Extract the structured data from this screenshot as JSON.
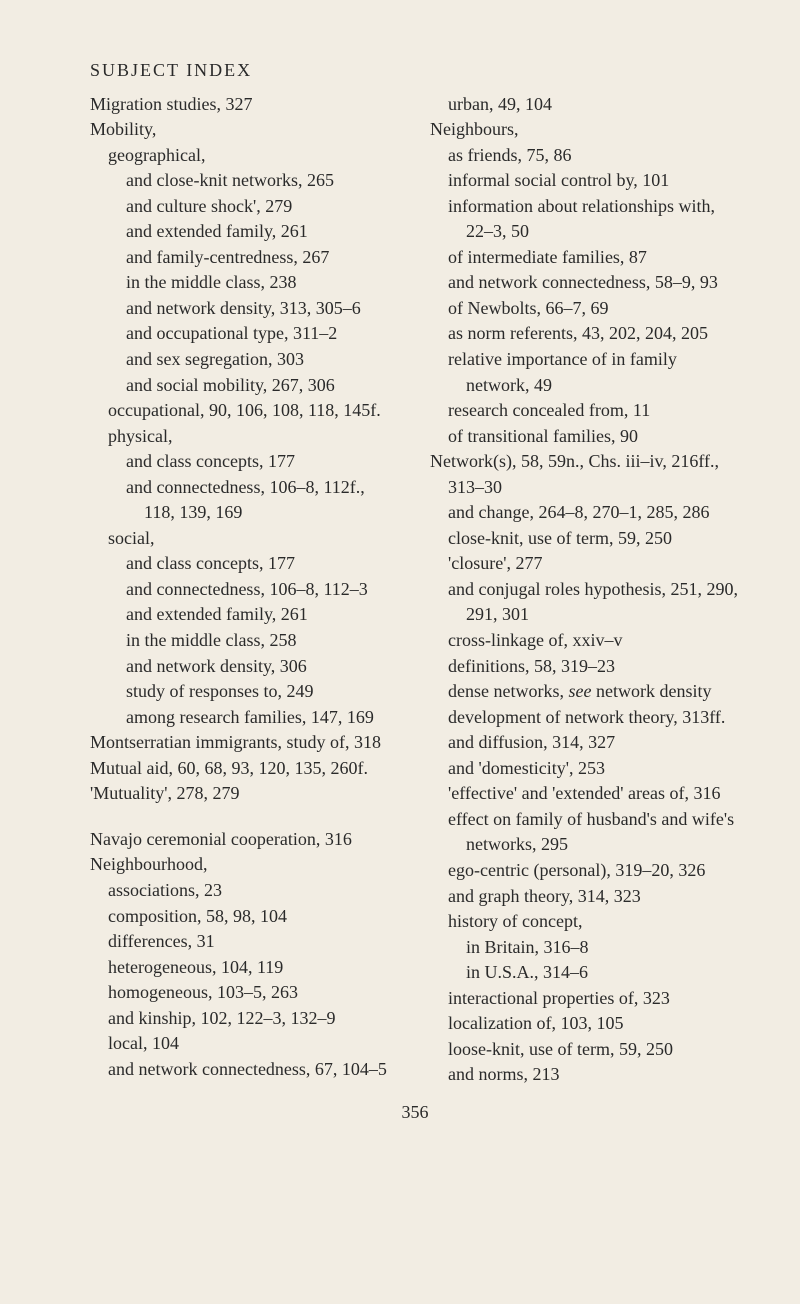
{
  "header": "SUBJECT INDEX",
  "pageNumber": "356",
  "leftColumn": [
    {
      "level": 0,
      "text": "Migration studies, 327"
    },
    {
      "level": 0,
      "text": "Mobility,"
    },
    {
      "level": 1,
      "text": "geographical,"
    },
    {
      "level": 2,
      "text": "and close-knit networks, 265"
    },
    {
      "level": 2,
      "text": "and culture shock', 279"
    },
    {
      "level": 2,
      "text": "and extended family, 261"
    },
    {
      "level": 2,
      "text": "and family-centredness, 267"
    },
    {
      "level": 2,
      "text": "in the middle class, 238"
    },
    {
      "level": 2,
      "text": "and network density, 313, 305–6"
    },
    {
      "level": 2,
      "text": "and occupational type, 311–2"
    },
    {
      "level": 2,
      "text": "and sex segregation, 303"
    },
    {
      "level": 2,
      "text": "and social mobility, 267, 306"
    },
    {
      "level": 1,
      "text": "occupational, 90, 106, 108, 118, 145f."
    },
    {
      "level": 1,
      "text": "physical,"
    },
    {
      "level": 2,
      "text": "and class concepts, 177"
    },
    {
      "level": 2,
      "text": "and connectedness, 106–8, 112f., 118, 139, 169"
    },
    {
      "level": 1,
      "text": "social,"
    },
    {
      "level": 2,
      "text": "and class concepts, 177"
    },
    {
      "level": 2,
      "text": "and connectedness, 106–8, 112–3"
    },
    {
      "level": 2,
      "text": "and extended family, 261"
    },
    {
      "level": 2,
      "text": "in the middle class, 258"
    },
    {
      "level": 2,
      "text": "and network density, 306"
    },
    {
      "level": 2,
      "text": "study of responses to, 249"
    },
    {
      "level": 2,
      "text": "among research families, 147, 169"
    },
    {
      "level": 0,
      "text": "Montserratian immigrants, study of, 318"
    },
    {
      "level": 0,
      "text": "Mutual aid, 60, 68, 93, 120, 135, 260f."
    },
    {
      "level": 0,
      "text": "'Mutuality', 278, 279"
    },
    {
      "level": -1,
      "text": ""
    },
    {
      "level": 0,
      "text": "Navajo ceremonial cooperation, 316"
    },
    {
      "level": 0,
      "text": "Neighbourhood,"
    },
    {
      "level": 1,
      "text": "associations, 23"
    },
    {
      "level": 1,
      "text": "composition, 58, 98, 104"
    },
    {
      "level": 1,
      "text": "differences, 31"
    },
    {
      "level": 1,
      "text": "heterogeneous, 104, 119"
    },
    {
      "level": 1,
      "text": "homogeneous, 103–5, 263"
    },
    {
      "level": 1,
      "text": "and kinship, 102, 122–3, 132–9"
    },
    {
      "level": 1,
      "text": "local, 104"
    },
    {
      "level": 1,
      "text": "and network connectedness, 67, 104–5"
    }
  ],
  "rightColumn": [
    {
      "level": 1,
      "text": "urban, 49, 104"
    },
    {
      "level": 0,
      "text": "Neighbours,"
    },
    {
      "level": 1,
      "text": "as friends, 75, 86"
    },
    {
      "level": 1,
      "text": "informal social control by, 101"
    },
    {
      "level": 1,
      "text": "information about relationships with, 22–3, 50"
    },
    {
      "level": 1,
      "text": "of intermediate families, 87"
    },
    {
      "level": 1,
      "text": "and network connectedness, 58–9, 93"
    },
    {
      "level": 1,
      "text": "of Newbolts, 66–7, 69"
    },
    {
      "level": 1,
      "text": "as norm referents, 43, 202, 204, 205"
    },
    {
      "level": 1,
      "text": "relative importance of in family network, 49"
    },
    {
      "level": 1,
      "text": "research concealed from, 11"
    },
    {
      "level": 1,
      "text": "of transitional families, 90"
    },
    {
      "level": 0,
      "text": "Network(s), 58, 59n., Chs. iii–iv, 216ff., 313–30"
    },
    {
      "level": 1,
      "text": "and change, 264–8, 270–1, 285, 286"
    },
    {
      "level": 1,
      "text": "close-knit, use of term, 59, 250"
    },
    {
      "level": 1,
      "text": "'closure', 277"
    },
    {
      "level": 1,
      "text": "and conjugal roles hypothesis, 251, 290, 291, 301"
    },
    {
      "level": 1,
      "text": "cross-linkage of, xxiv–v"
    },
    {
      "level": 1,
      "text": "definitions, 58, 319–23"
    },
    {
      "level": 1,
      "html": "dense networks, <span class=\"italic\">see</span> network density"
    },
    {
      "level": 1,
      "text": "development of network theory, 313ff."
    },
    {
      "level": 1,
      "text": "and diffusion, 314, 327"
    },
    {
      "level": 1,
      "text": "and 'domesticity', 253"
    },
    {
      "level": 1,
      "text": "'effective' and 'extended' areas of, 316"
    },
    {
      "level": 1,
      "text": "effect on family of husband's and wife's networks, 295"
    },
    {
      "level": 1,
      "text": "ego-centric (personal), 319–20, 326"
    },
    {
      "level": 1,
      "text": "and graph theory, 314, 323"
    },
    {
      "level": 1,
      "text": "history of concept,"
    },
    {
      "level": 2,
      "text": "in Britain, 316–8"
    },
    {
      "level": 2,
      "text": "in U.S.A., 314–6"
    },
    {
      "level": 1,
      "text": "interactional properties of, 323"
    },
    {
      "level": 1,
      "text": "localization of, 103, 105"
    },
    {
      "level": 1,
      "text": "loose-knit, use of term, 59, 250"
    },
    {
      "level": 1,
      "text": "and norms, 213"
    }
  ]
}
